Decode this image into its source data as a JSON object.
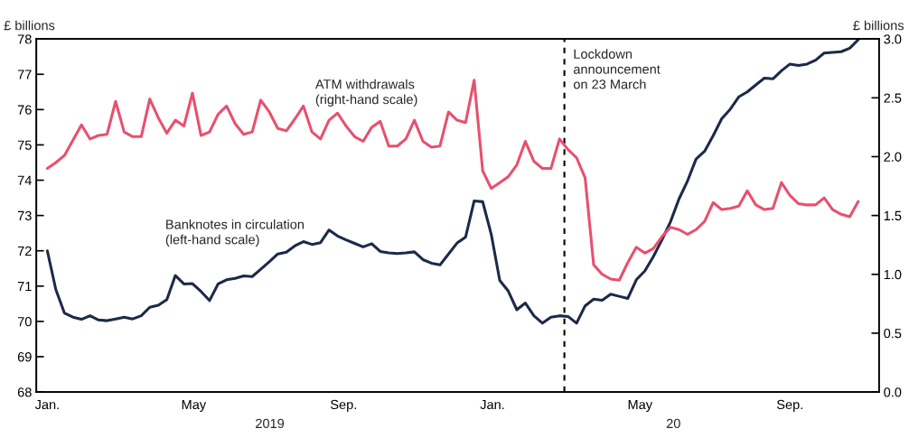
{
  "chart_data": {
    "type": "line",
    "ylabel": "£ billions",
    "y2label": "£ billions",
    "x": [
      "2019-01-15",
      "2019-01-22",
      "2019-01-29",
      "2019-02-05",
      "2019-02-12",
      "2019-02-19",
      "2019-02-26",
      "2019-03-05",
      "2019-03-12",
      "2019-03-19",
      "2019-03-26",
      "2019-04-02",
      "2019-04-09",
      "2019-04-16",
      "2019-04-23",
      "2019-04-30",
      "2019-05-07",
      "2019-05-14",
      "2019-05-21",
      "2019-05-28",
      "2019-06-04",
      "2019-06-11",
      "2019-06-18",
      "2019-06-25",
      "2019-07-02",
      "2019-07-09",
      "2019-07-16",
      "2019-07-23",
      "2019-07-30",
      "2019-08-06",
      "2019-08-13",
      "2019-08-20",
      "2019-08-27",
      "2019-09-03",
      "2019-09-10",
      "2019-09-17",
      "2019-09-24",
      "2019-10-01",
      "2019-10-08",
      "2019-10-15",
      "2019-10-22",
      "2019-10-29",
      "2019-11-05",
      "2019-11-12",
      "2019-11-19",
      "2019-11-26",
      "2019-12-03",
      "2019-12-10",
      "2019-12-17",
      "2019-12-24",
      "2019-12-31",
      "2020-01-07",
      "2020-01-14",
      "2020-01-21",
      "2020-01-28",
      "2020-02-04",
      "2020-02-11",
      "2020-02-18",
      "2020-02-25",
      "2020-03-03",
      "2020-03-10",
      "2020-03-17",
      "2020-03-24",
      "2020-03-31",
      "2020-04-07",
      "2020-04-14",
      "2020-04-21",
      "2020-04-28",
      "2020-05-05",
      "2020-05-12",
      "2020-05-19",
      "2020-05-26",
      "2020-06-02",
      "2020-06-09",
      "2020-06-16",
      "2020-06-23",
      "2020-06-30",
      "2020-07-07",
      "2020-07-14",
      "2020-07-21",
      "2020-07-28",
      "2020-08-04",
      "2020-08-11",
      "2020-08-18",
      "2020-08-25",
      "2020-09-01",
      "2020-09-08",
      "2020-09-15",
      "2020-09-22",
      "2020-09-29",
      "2020-10-06",
      "2020-10-13",
      "2020-10-20",
      "2020-10-27",
      "2020-11-03",
      "2020-11-10"
    ],
    "series": [
      {
        "color": "#1c2a48",
        "values": [
          72.0,
          70.9,
          70.24,
          70.12,
          70.06,
          70.16,
          70.04,
          70.02,
          70.07,
          70.12,
          70.07,
          70.16,
          70.4,
          70.46,
          70.62,
          71.3,
          71.06,
          71.07,
          70.85,
          70.59,
          71.06,
          71.18,
          71.22,
          71.29,
          71.27,
          71.48,
          71.69,
          71.91,
          71.96,
          72.14,
          72.26,
          72.18,
          72.23,
          72.59,
          72.42,
          72.31,
          72.21,
          72.11,
          72.2,
          71.98,
          71.94,
          71.92,
          71.94,
          71.97,
          71.75,
          71.65,
          71.6,
          71.91,
          72.22,
          72.39,
          73.41,
          73.39,
          72.47,
          71.16,
          70.86,
          70.33,
          70.52,
          70.16,
          69.95,
          70.12,
          70.16,
          70.14,
          69.95,
          70.44,
          70.63,
          70.6,
          70.77,
          70.71,
          70.65,
          71.18,
          71.43,
          71.84,
          72.31,
          72.82,
          73.47,
          73.98,
          74.6,
          74.82,
          75.26,
          75.74,
          76.01,
          76.36,
          76.5,
          76.7,
          76.89,
          76.87,
          77.1,
          77.29,
          77.25,
          77.29,
          77.4,
          77.6,
          77.62,
          77.64,
          77.74,
          77.98
        ]
      },
      {
        "color": "#e8506e",
        "axis": "y2",
        "values": [
          1.9,
          1.95,
          2.01,
          2.14,
          2.27,
          2.15,
          2.18,
          2.19,
          2.47,
          2.21,
          2.17,
          2.17,
          2.49,
          2.33,
          2.2,
          2.31,
          2.26,
          2.54,
          2.18,
          2.21,
          2.36,
          2.43,
          2.28,
          2.19,
          2.21,
          2.48,
          2.38,
          2.24,
          2.22,
          2.32,
          2.43,
          2.21,
          2.15,
          2.31,
          2.37,
          2.26,
          2.17,
          2.13,
          2.25,
          2.3,
          2.09,
          2.09,
          2.15,
          2.31,
          2.13,
          2.08,
          2.09,
          2.38,
          2.31,
          2.29,
          2.65,
          1.88,
          1.73,
          1.78,
          1.83,
          1.93,
          2.13,
          1.96,
          1.9,
          1.9,
          2.15,
          2.06,
          1.99,
          1.82,
          1.08,
          1.0,
          0.96,
          0.95,
          1.1,
          1.23,
          1.18,
          1.22,
          1.32,
          1.4,
          1.38,
          1.34,
          1.38,
          1.45,
          1.61,
          1.55,
          1.56,
          1.58,
          1.71,
          1.59,
          1.55,
          1.56,
          1.78,
          1.67,
          1.6,
          1.59,
          1.59,
          1.65,
          1.55,
          1.51,
          1.49,
          1.62
        ]
      }
    ],
    "xlim": [
      "2019-01-06",
      "2020-11-27"
    ],
    "xticks": [
      {
        "value": "2019-01-15",
        "label": "Jan."
      },
      {
        "value": "2019-05-15",
        "label": "May"
      },
      {
        "value": "2019-09-15",
        "label": "Sep."
      },
      {
        "value": "2020-01-15",
        "label": "Jan."
      },
      {
        "value": "2020-05-15",
        "label": "May"
      },
      {
        "value": "2020-09-15",
        "label": "Sep."
      }
    ],
    "ylim": [
      68,
      78
    ],
    "yticks": [
      68,
      69,
      70,
      71,
      72,
      73,
      74,
      75,
      76,
      77,
      78
    ],
    "y2lim": [
      0,
      3
    ],
    "y2ticks": [
      {
        "value": 0,
        "label": "0.0"
      },
      {
        "value": 0.5,
        "label": "0.5"
      },
      {
        "value": 1,
        "label": "1.0"
      },
      {
        "value": 1.5,
        "label": "1.5"
      },
      {
        "value": 2,
        "label": "2.0"
      },
      {
        "value": 2.5,
        "label": "2.5"
      },
      {
        "value": 3,
        "label": "3.0"
      }
    ],
    "ref_lines": [
      {
        "axis": "x",
        "value": "2020-03-14",
        "label": "Lockdown\nannouncement\non 23 March",
        "color": "#000000",
        "line_style": "dashed"
      }
    ],
    "annotations": [
      "ATM withdrawals\n(right-hand scale)",
      "Banknotes in circulation\n(left-hand scale)",
      "2019",
      "20"
    ],
    "grid": false,
    "legend": false
  }
}
